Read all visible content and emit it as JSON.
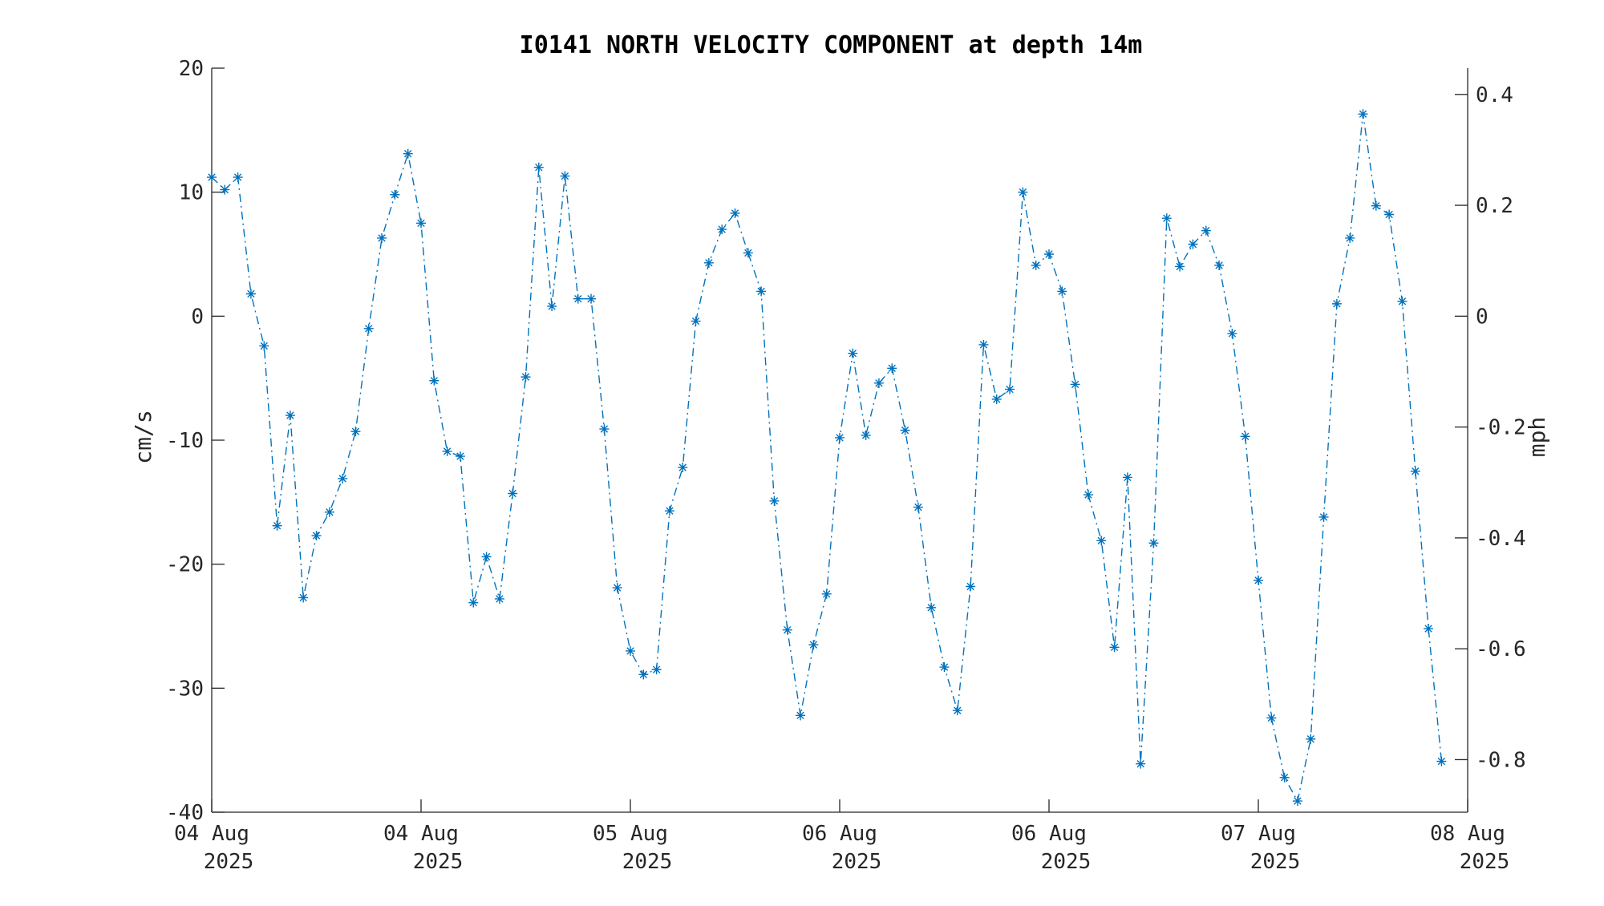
{
  "chart_data": {
    "type": "line",
    "title": "I0141 NORTH VELOCITY COMPONENT at depth 14m",
    "ylabel": "cm/s",
    "y2label": "mph",
    "ylim": [
      -40,
      20
    ],
    "y2lim": [
      -0.8948,
      0.4474
    ],
    "xlim": [
      0,
      96
    ],
    "yticks": [
      "20",
      "10",
      "0",
      "-10",
      "-20",
      "-30",
      "-40"
    ],
    "y2ticks": [
      "0.4",
      "0.2",
      "0",
      "-0.2",
      "-0.4",
      "-0.6",
      "-0.8"
    ],
    "xticks": [
      {
        "line1": "04 Aug",
        "line2": "2025"
      },
      {
        "line1": "04 Aug",
        "line2": "2025"
      },
      {
        "line1": "05 Aug",
        "line2": "2025"
      },
      {
        "line1": "06 Aug",
        "line2": "2025"
      },
      {
        "line1": "06 Aug",
        "line2": "2025"
      },
      {
        "line1": "07 Aug",
        "line2": "2025"
      },
      {
        "line1": "08 Aug",
        "line2": "2025"
      }
    ],
    "grid": false,
    "legend": "none",
    "color": "#0072BD",
    "marker": "asterisk",
    "line_style": "dash-dot",
    "series": [
      {
        "values": [
          11.2,
          10.2,
          11.2,
          1.8,
          -2.4,
          -16.9,
          -8.0,
          -22.7,
          -17.7,
          -15.8,
          -13.1,
          -9.3,
          -1.0,
          6.3,
          9.8,
          13.1,
          7.5,
          -5.2,
          -10.9,
          -11.3,
          -23.1,
          -19.4,
          -22.8,
          -14.3,
          -4.9,
          12.0,
          0.8,
          11.3,
          1.4,
          1.4,
          -9.1,
          -21.9,
          -27.0,
          -28.9,
          -28.5,
          -15.7,
          -12.2,
          -0.4,
          4.3,
          7.0,
          8.3,
          5.1,
          2.0,
          -14.9,
          -25.3,
          -32.2,
          -26.5,
          -22.4,
          -9.8,
          -3.0,
          -9.6,
          -5.4,
          -4.2,
          -9.2,
          -15.4,
          -23.5,
          -28.3,
          -31.8,
          -21.8,
          -2.3,
          -6.7,
          -5.9,
          10.0,
          4.1,
          5.0,
          2.0,
          -5.5,
          -14.4,
          -18.1,
          -26.7,
          -13.0,
          -36.1,
          -18.3,
          7.9,
          4.0,
          5.8,
          6.9,
          4.1,
          -1.4,
          -9.7,
          -21.3,
          -32.4,
          -37.2,
          -39.1,
          -34.1,
          -16.2,
          1.0,
          6.3,
          16.3,
          8.9,
          8.2,
          1.2,
          -12.5,
          -25.2,
          -35.9
        ]
      }
    ]
  }
}
